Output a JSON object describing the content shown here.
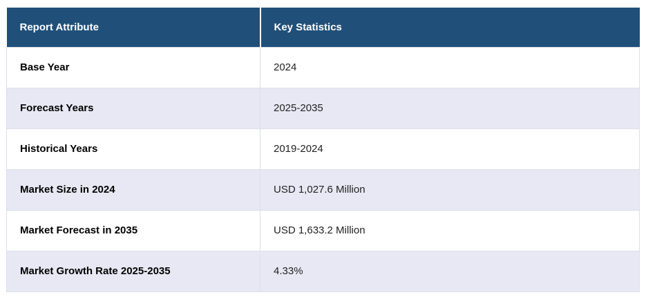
{
  "table": {
    "columns": {
      "attribute": "Report Attribute",
      "statistics": "Key Statistics"
    },
    "rows": [
      {
        "attribute": "Base Year",
        "value": "2024"
      },
      {
        "attribute": "Forecast Years",
        "value": "2025-2035"
      },
      {
        "attribute": "Historical Years",
        "value": "2019-2024"
      },
      {
        "attribute": "Market Size in 2024",
        "value": "USD 1,027.6 Million"
      },
      {
        "attribute": "Market Forecast in 2035",
        "value": "USD 1,633.2 Million"
      },
      {
        "attribute": "Market Growth Rate 2025-2035",
        "value": "4.33%"
      }
    ],
    "colors": {
      "header_bg": "#20507a",
      "header_text": "#ffffff",
      "row_alt_bg": "#e7e8f3",
      "row_bg": "#ffffff",
      "border": "#dcdee8"
    }
  }
}
